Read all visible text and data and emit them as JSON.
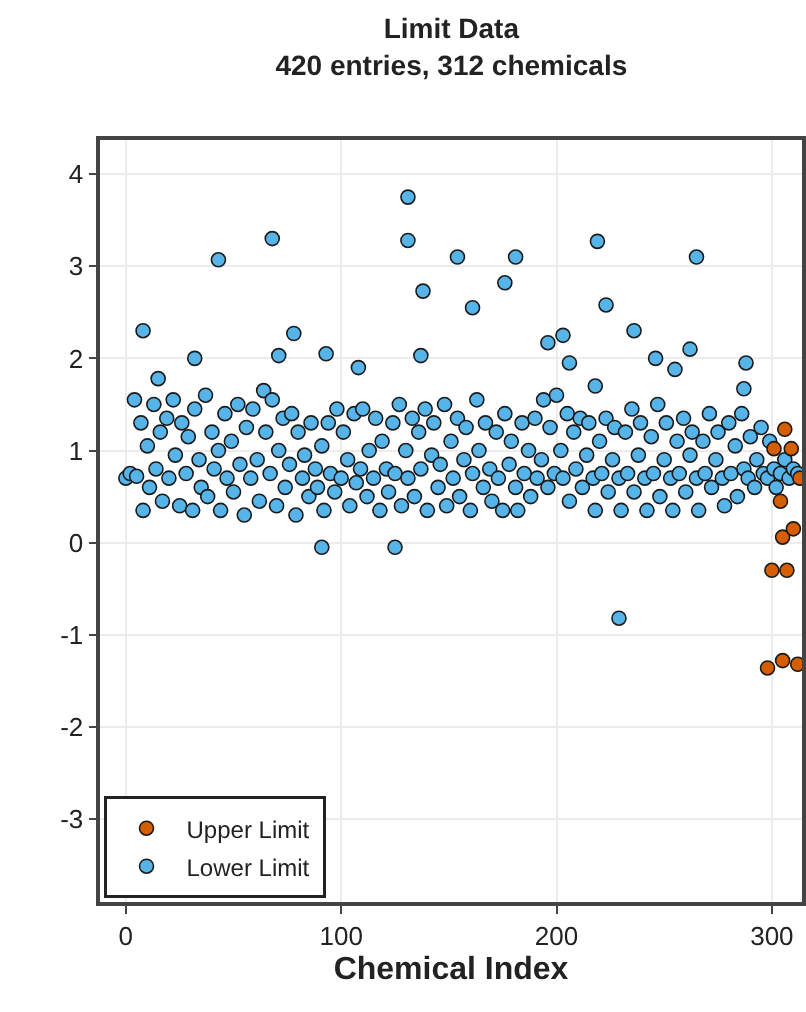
{
  "chart_data": {
    "type": "scatter",
    "title": "Limit Data",
    "subtitle": "420 entries, 312 chemicals",
    "xlabel": "Chemical Index",
    "xlim": [
      -12,
      314
    ],
    "xticks": [
      0,
      100,
      200,
      300
    ],
    "ylim": [
      -3.9,
      4.37
    ],
    "yticks": [
      -3,
      -2,
      -1,
      0,
      1,
      2,
      3,
      4
    ],
    "grid": true,
    "legend": "bottom left",
    "marker": "circle",
    "series": [
      {
        "name": "Upper Limit",
        "color": "#d55e00",
        "x": [
          306,
          309,
          301,
          313,
          304,
          305,
          310,
          300,
          307,
          298,
          305,
          312
        ],
        "values": [
          1.23,
          1.02,
          1.02,
          0.7,
          0.45,
          0.06,
          0.15,
          -0.3,
          -0.3,
          -1.36,
          -1.28,
          -1.32
        ]
      },
      {
        "name": "Lower Limit",
        "color": "#56b4e9",
        "x": [
          8,
          43,
          68,
          78,
          32,
          93,
          71,
          108,
          137,
          91,
          125,
          15,
          131,
          131,
          138,
          154,
          181,
          176,
          161,
          219,
          223,
          265,
          236,
          229,
          196,
          203,
          206,
          246,
          255,
          262,
          288,
          287,
          218,
          0,
          2,
          4,
          5,
          7,
          8,
          10,
          11,
          13,
          14,
          16,
          17,
          19,
          20,
          22,
          23,
          25,
          26,
          28,
          29,
          31,
          32,
          34,
          35,
          37,
          38,
          40,
          41,
          43,
          44,
          46,
          47,
          49,
          50,
          52,
          53,
          55,
          56,
          58,
          59,
          61,
          62,
          64,
          65,
          67,
          68,
          70,
          71,
          73,
          74,
          76,
          77,
          79,
          80,
          82,
          83,
          85,
          86,
          88,
          89,
          91,
          92,
          94,
          95,
          97,
          98,
          100,
          101,
          103,
          104,
          106,
          107,
          109,
          110,
          112,
          113,
          115,
          116,
          118,
          119,
          121,
          122,
          124,
          125,
          127,
          128,
          130,
          131,
          133,
          134,
          136,
          137,
          139,
          140,
          142,
          143,
          145,
          146,
          148,
          149,
          151,
          152,
          154,
          155,
          157,
          158,
          160,
          161,
          163,
          164,
          166,
          167,
          169,
          170,
          172,
          173,
          175,
          176,
          178,
          179,
          181,
          182,
          184,
          185,
          187,
          188,
          190,
          191,
          193,
          194,
          196,
          197,
          199,
          200,
          202,
          203,
          205,
          206,
          208,
          209,
          211,
          212,
          214,
          215,
          217,
          218,
          220,
          221,
          223,
          224,
          226,
          227,
          229,
          230,
          232,
          233,
          235,
          236,
          238,
          239,
          241,
          242,
          244,
          245,
          247,
          248,
          250,
          251,
          253,
          254,
          256,
          257,
          259,
          260,
          262,
          263,
          265,
          266,
          268,
          269,
          271,
          272,
          274,
          275,
          277,
          278,
          280,
          281,
          283,
          284,
          286,
          287,
          289,
          290,
          292,
          293,
          295,
          296,
          298,
          299,
          301,
          302,
          304,
          306,
          308,
          310,
          312
        ],
        "values": [
          2.3,
          3.07,
          3.3,
          2.27,
          2.0,
          2.05,
          2.03,
          1.9,
          2.03,
          -0.05,
          -0.05,
          1.78,
          3.75,
          3.28,
          2.73,
          3.1,
          3.1,
          2.82,
          2.55,
          3.27,
          2.58,
          3.1,
          2.3,
          -0.82,
          2.17,
          2.25,
          1.95,
          2.0,
          1.88,
          2.1,
          1.95,
          1.67,
          1.7,
          0.7,
          0.75,
          1.55,
          0.72,
          1.3,
          0.35,
          1.05,
          0.6,
          1.5,
          0.8,
          1.2,
          0.45,
          1.35,
          0.7,
          1.55,
          0.95,
          0.4,
          1.3,
          0.75,
          1.15,
          0.35,
          1.45,
          0.9,
          0.6,
          1.6,
          0.5,
          1.2,
          0.8,
          1.0,
          0.35,
          1.4,
          0.7,
          1.1,
          0.55,
          1.5,
          0.85,
          0.3,
          1.25,
          0.7,
          1.45,
          0.9,
          0.45,
          1.65,
          1.2,
          0.75,
          1.55,
          0.4,
          1.0,
          1.35,
          0.6,
          0.85,
          1.4,
          0.3,
          1.2,
          0.7,
          0.95,
          0.5,
          1.3,
          0.8,
          0.6,
          1.05,
          0.35,
          1.3,
          0.75,
          0.55,
          1.45,
          0.7,
          1.2,
          0.9,
          0.4,
          1.4,
          0.65,
          0.8,
          1.45,
          0.5,
          1.0,
          0.7,
          1.35,
          0.35,
          1.1,
          0.8,
          0.55,
          1.3,
          0.75,
          1.5,
          0.4,
          1.0,
          0.7,
          1.35,
          0.5,
          1.2,
          0.8,
          1.45,
          0.35,
          0.95,
          1.3,
          0.6,
          0.85,
          1.5,
          0.4,
          1.1,
          0.7,
          1.35,
          0.5,
          0.9,
          1.25,
          0.35,
          0.75,
          1.55,
          1.0,
          0.6,
          1.3,
          0.8,
          0.45,
          1.2,
          0.7,
          0.35,
          1.4,
          0.85,
          1.1,
          0.6,
          0.35,
          1.3,
          0.75,
          1.0,
          0.5,
          1.35,
          0.7,
          0.9,
          1.55,
          0.6,
          1.25,
          0.75,
          1.6,
          1.0,
          0.7,
          1.4,
          0.45,
          1.2,
          0.8,
          1.35,
          0.6,
          0.95,
          1.3,
          0.7,
          0.35,
          1.1,
          0.75,
          1.35,
          0.55,
          0.9,
          1.25,
          0.7,
          0.35,
          1.2,
          0.75,
          1.45,
          0.55,
          0.95,
          1.3,
          0.7,
          0.35,
          1.15,
          0.75,
          1.5,
          0.5,
          0.9,
          1.3,
          0.7,
          0.35,
          1.1,
          0.75,
          1.35,
          0.55,
          0.95,
          1.2,
          0.7,
          0.35,
          1.1,
          0.75,
          1.4,
          0.6,
          0.9,
          1.2,
          0.7,
          0.4,
          1.3,
          0.75,
          1.05,
          0.5,
          1.4,
          0.8,
          0.7,
          1.15,
          0.6,
          0.9,
          1.25,
          0.75,
          0.7,
          1.1,
          0.8,
          0.6,
          0.75,
          0.9,
          0.7,
          0.8,
          0.75
        ]
      }
    ]
  }
}
